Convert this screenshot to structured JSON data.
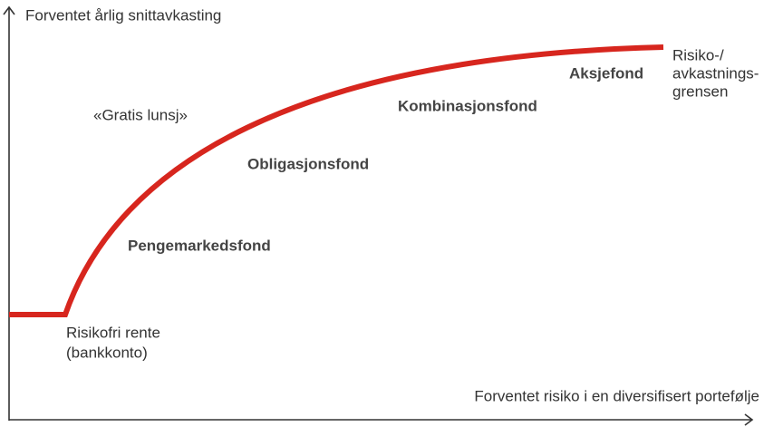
{
  "axes": {
    "y_label": "Forventet årlig snittavkasting",
    "x_label": "Forventet risiko i en diversifisert portefølje"
  },
  "annotations": {
    "free_lunch": "«Gratis lunsj»",
    "risk_free": [
      "Risikofri rente",
      "(bankkonto)"
    ],
    "frontier": [
      "Risiko-/",
      "avkastnings-",
      "grensen"
    ]
  },
  "fund_labels": [
    "Pengemarkedsfond",
    "Obligasjonsfond",
    "Kombinasjonsfond",
    "Aksjefond"
  ]
}
